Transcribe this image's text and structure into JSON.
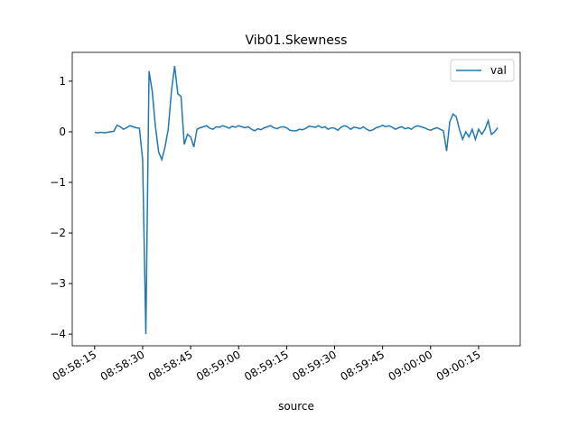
{
  "chart_data": {
    "type": "line",
    "title": "Vib01.Skewness",
    "xlabel": "source",
    "x": [
      "08:58:15",
      "08:58:16",
      "08:58:17",
      "08:58:18",
      "08:58:19",
      "08:58:20",
      "08:58:21",
      "08:58:22",
      "08:58:23",
      "08:58:24",
      "08:58:25",
      "08:58:26",
      "08:58:27",
      "08:58:28",
      "08:58:29",
      "08:58:30",
      "08:58:31",
      "08:58:32",
      "08:58:33",
      "08:58:34",
      "08:58:35",
      "08:58:36",
      "08:58:37",
      "08:58:38",
      "08:58:39",
      "08:58:40",
      "08:58:41",
      "08:58:42",
      "08:58:43",
      "08:58:44",
      "08:58:45",
      "08:58:46",
      "08:58:47",
      "08:58:48",
      "08:58:49",
      "08:58:50",
      "08:58:51",
      "08:58:52",
      "08:58:53",
      "08:58:54",
      "08:58:55",
      "08:58:56",
      "08:58:57",
      "08:58:58",
      "08:58:59",
      "08:59:00",
      "08:59:01",
      "08:59:02",
      "08:59:03",
      "08:59:04",
      "08:59:05",
      "08:59:06",
      "08:59:07",
      "08:59:08",
      "08:59:09",
      "08:59:10",
      "08:59:11",
      "08:59:12",
      "08:59:13",
      "08:59:14",
      "08:59:15",
      "08:59:16",
      "08:59:17",
      "08:59:18",
      "08:59:19",
      "08:59:20",
      "08:59:21",
      "08:59:22",
      "08:59:23",
      "08:59:24",
      "08:59:25",
      "08:59:26",
      "08:59:27",
      "08:59:28",
      "08:59:29",
      "08:59:30",
      "08:59:31",
      "08:59:32",
      "08:59:33",
      "08:59:34",
      "08:59:35",
      "08:59:36",
      "08:59:37",
      "08:59:38",
      "08:59:39",
      "08:59:40",
      "08:59:41",
      "08:59:42",
      "08:59:43",
      "08:59:44",
      "08:59:45",
      "08:59:46",
      "08:59:47",
      "08:59:48",
      "08:59:49",
      "08:59:50",
      "08:59:51",
      "08:59:52",
      "08:59:53",
      "08:59:54",
      "08:59:55",
      "08:59:56",
      "08:59:57",
      "08:59:58",
      "08:59:59",
      "09:00:00",
      "09:00:01",
      "09:00:02",
      "09:00:03",
      "09:00:04",
      "09:00:05",
      "09:00:06",
      "09:00:07",
      "09:00:08",
      "09:00:09",
      "09:00:10",
      "09:00:11",
      "09:00:12",
      "09:00:13",
      "09:00:14",
      "09:00:15",
      "09:00:16",
      "09:00:17",
      "09:00:18",
      "09:00:19",
      "09:00:20",
      "09:00:21"
    ],
    "series": [
      {
        "name": "val",
        "color": "#1f77b4",
        "values": [
          -0.01,
          -0.02,
          -0.01,
          -0.02,
          -0.01,
          0.0,
          0.01,
          0.13,
          0.1,
          0.05,
          0.08,
          0.12,
          0.1,
          0.08,
          0.07,
          -0.55,
          -4.0,
          1.2,
          0.8,
          0.1,
          -0.4,
          -0.55,
          -0.3,
          0.05,
          0.8,
          1.3,
          0.75,
          0.7,
          -0.25,
          -0.05,
          -0.1,
          -0.3,
          0.05,
          0.08,
          0.1,
          0.12,
          0.07,
          0.05,
          0.1,
          0.09,
          0.12,
          0.1,
          0.07,
          0.11,
          0.09,
          0.12,
          0.1,
          0.08,
          0.1,
          0.05,
          0.02,
          0.06,
          0.04,
          0.08,
          0.1,
          0.12,
          0.08,
          0.06,
          0.09,
          0.1,
          0.08,
          0.03,
          0.02,
          0.02,
          0.05,
          0.04,
          0.07,
          0.11,
          0.1,
          0.09,
          0.12,
          0.08,
          0.1,
          0.05,
          0.08,
          0.07,
          0.03,
          0.09,
          0.12,
          0.1,
          0.05,
          0.09,
          0.08,
          0.06,
          0.1,
          0.05,
          0.02,
          0.04,
          0.08,
          0.1,
          0.13,
          0.1,
          0.12,
          0.09,
          0.05,
          0.08,
          0.1,
          0.06,
          0.08,
          0.05,
          0.1,
          0.12,
          0.1,
          0.08,
          0.05,
          0.03,
          0.06,
          0.08,
          0.05,
          0.02,
          -0.38,
          0.2,
          0.35,
          0.3,
          0.05,
          -0.15,
          0.0,
          -0.1,
          0.05,
          -0.15,
          0.05,
          -0.05,
          0.05,
          0.22,
          -0.05,
          0.0,
          0.08
        ]
      }
    ],
    "xlim": [
      "08:58:08",
      "09:00:28"
    ],
    "xticks": [
      "08:58:15",
      "08:58:30",
      "08:58:45",
      "08:59:00",
      "08:59:15",
      "08:59:30",
      "08:59:45",
      "09:00:00",
      "09:00:15"
    ],
    "ylim": [
      -4.23,
      1.57
    ],
    "yticks": [
      {
        "value": -4,
        "label": "−4"
      },
      {
        "value": -3,
        "label": "−3"
      },
      {
        "value": -2,
        "label": "−2"
      },
      {
        "value": -1,
        "label": "−1"
      },
      0,
      1
    ],
    "legend": "upper right"
  }
}
